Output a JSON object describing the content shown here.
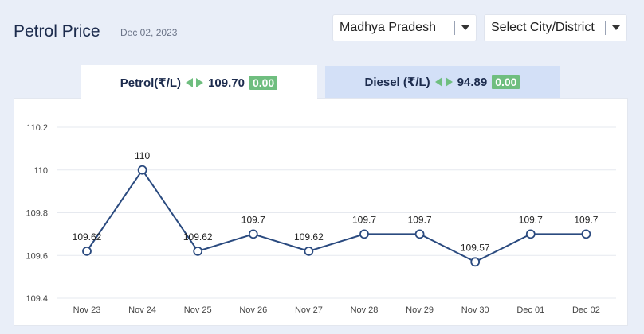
{
  "header": {
    "title": "Petrol Price",
    "date": "Dec 02, 2023"
  },
  "filters": {
    "state": "Madhya Pradesh",
    "city_placeholder": "Select City/District"
  },
  "tabs": {
    "petrol": {
      "label": "Petrol(₹/L)",
      "price": "109.70",
      "change": "0.00"
    },
    "diesel": {
      "label": "Diesel (₹/L)",
      "price": "94.89",
      "change": "0.00"
    }
  },
  "colors": {
    "line": "#2a4a7f",
    "badge": "#6fbe7f",
    "active_tab": "#ffffff",
    "inactive_tab": "#d3e0f7",
    "arrow": "#6fbe7f"
  },
  "icons": {
    "dropdown": "caret-down-icon",
    "change": "left-right-arrows-icon"
  },
  "chart_data": {
    "type": "line",
    "categories": [
      "Nov 23",
      "Nov 24",
      "Nov 25",
      "Nov 26",
      "Nov 27",
      "Nov 28",
      "Nov 29",
      "Nov 30",
      "Dec 01",
      "Dec 02"
    ],
    "values": [
      109.62,
      110,
      109.62,
      109.7,
      109.62,
      109.7,
      109.7,
      109.57,
      109.7,
      109.7
    ],
    "data_labels": [
      "109.62",
      "110",
      "109.62",
      "109.7",
      "109.62",
      "109.7",
      "109.7",
      "109.57",
      "109.7",
      "109.7"
    ],
    "yticks": [
      "110.2",
      "110",
      "109.8",
      "109.6",
      "109.4"
    ],
    "ylim": [
      109.4,
      110.2
    ],
    "grid": true,
    "title": "",
    "xlabel": "",
    "ylabel": ""
  }
}
